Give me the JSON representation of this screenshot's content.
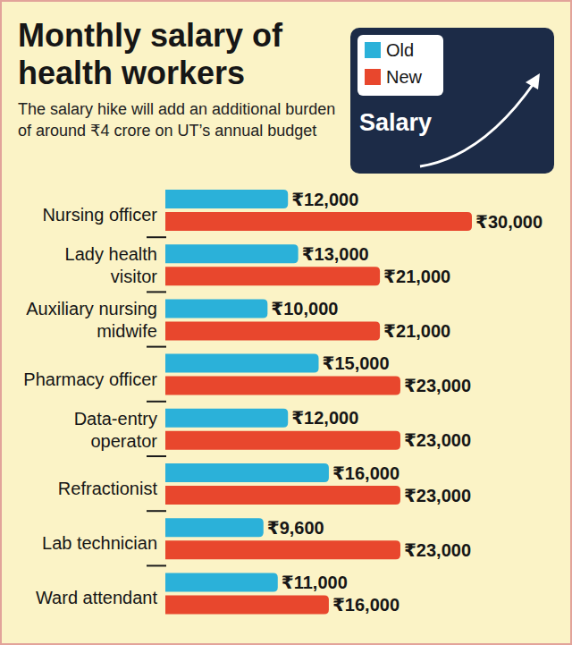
{
  "chart_data": {
    "type": "bar",
    "orientation": "horizontal",
    "title": "Monthly salary of health workers",
    "subtitle": "The salary hike will add an additional burden of around ₹4 crore on UT’s annual budget",
    "annotations": [
      "Salary"
    ],
    "categories": [
      "Nursing officer",
      "Lady health visitor",
      "Auxiliary nursing midwife",
      "Pharmacy officer",
      "Data-entry operator",
      "Refractionist",
      "Lab technician",
      "Ward attendant"
    ],
    "series": [
      {
        "name": "Old",
        "color": "#2bb1d9",
        "values": [
          12000,
          13000,
          10000,
          15000,
          12000,
          16000,
          9600,
          11000
        ],
        "value_labels": [
          "₹12,000",
          "₹13,000",
          "₹10,000",
          "₹15,000",
          "₹12,000",
          "₹16,000",
          "₹9,600",
          "₹11,000"
        ]
      },
      {
        "name": "New",
        "color": "#e8472d",
        "values": [
          30000,
          21000,
          21000,
          23000,
          23000,
          23000,
          23000,
          16000
        ],
        "value_labels": [
          "₹30,000",
          "₹21,000",
          "₹21,000",
          "₹23,000",
          "₹23,000",
          "₹23,000",
          "₹23,000",
          "₹16,000"
        ]
      }
    ],
    "xlim": [
      0,
      30000
    ],
    "data_labels": true,
    "tick_labels": false,
    "grid": false,
    "legend": "top-right"
  }
}
